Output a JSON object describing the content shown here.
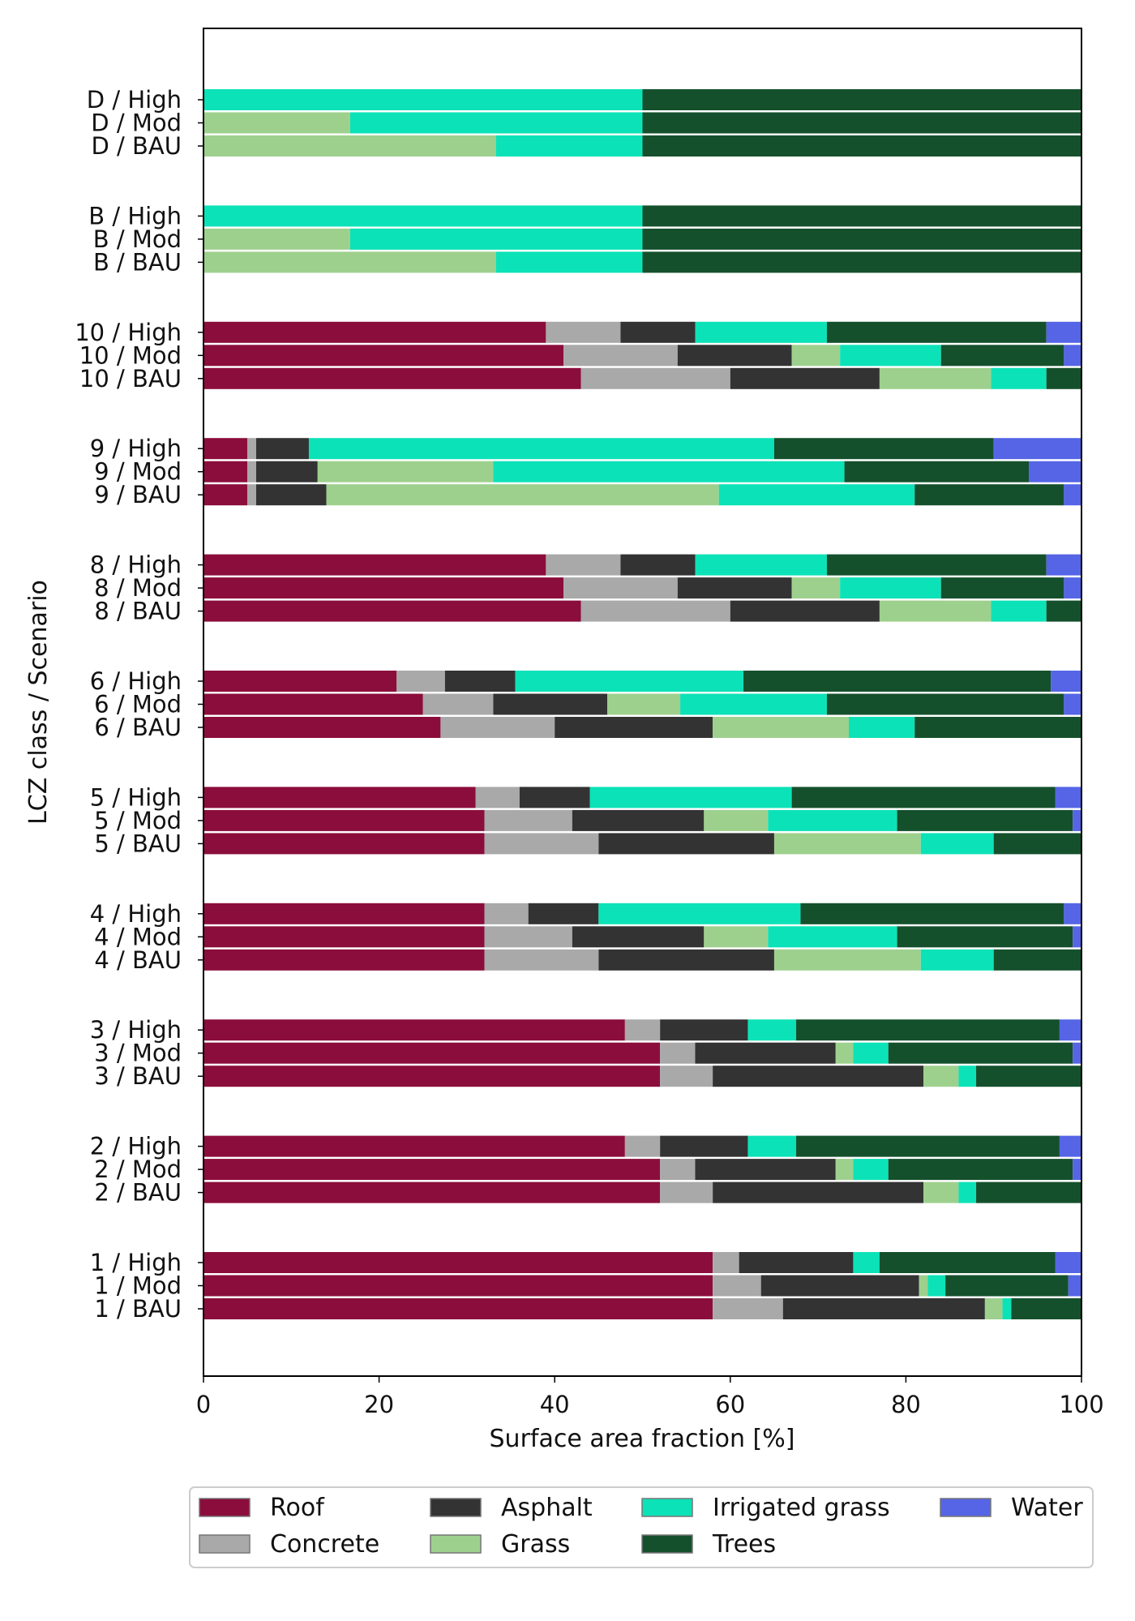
{
  "chart_data": {
    "type": "bar",
    "orientation": "horizontal",
    "stacked": true,
    "xlabel": "Surface area fraction [%]",
    "ylabel": "LCZ class / Scenario",
    "xlim": [
      0,
      100
    ],
    "x_ticks": [
      "0",
      "20",
      "40",
      "60",
      "80",
      "100"
    ],
    "grid": false,
    "legend_position": "bottom",
    "series": [
      {
        "name": "Roof",
        "color": "#8B0D3B"
      },
      {
        "name": "Concrete",
        "color": "#A9A9A9"
      },
      {
        "name": "Asphalt",
        "color": "#333333"
      },
      {
        "name": "Grass",
        "color": "#9ED08D"
      },
      {
        "name": "Irrigated grass",
        "color": "#0CE2B7"
      },
      {
        "name": "Trees",
        "color": "#15502C"
      },
      {
        "name": "Water",
        "color": "#5565E6"
      }
    ],
    "groups": [
      {
        "bars": [
          {
            "label": "D / High",
            "values": [
              0,
              0,
              0,
              0,
              50,
              50,
              0
            ]
          },
          {
            "label": "D / Mod",
            "values": [
              0,
              0,
              0,
              16.7,
              33.3,
              50,
              0
            ]
          },
          {
            "label": "D / BAU",
            "values": [
              0,
              0,
              0,
              33.3,
              16.7,
              50,
              0
            ]
          }
        ]
      },
      {
        "bars": [
          {
            "label": "B / High",
            "values": [
              0,
              0,
              0,
              0,
              50,
              50,
              0
            ]
          },
          {
            "label": "B / Mod",
            "values": [
              0,
              0,
              0,
              16.7,
              33.3,
              50,
              0
            ]
          },
          {
            "label": "B / BAU",
            "values": [
              0,
              0,
              0,
              33.3,
              16.7,
              50,
              0
            ]
          }
        ]
      },
      {
        "bars": [
          {
            "label": "10 / High",
            "values": [
              39,
              8.5,
              8.5,
              0,
              15,
              25,
              4
            ]
          },
          {
            "label": "10 / Mod",
            "values": [
              41,
              13,
              13,
              5.5,
              11.5,
              14,
              2
            ]
          },
          {
            "label": "10 / BAU",
            "values": [
              43,
              17,
              17,
              12.7,
              6.3,
              4,
              0
            ]
          }
        ]
      },
      {
        "bars": [
          {
            "label": "9 / High",
            "values": [
              5,
              1,
              6,
              0,
              53,
              25,
              10
            ]
          },
          {
            "label": "9 / Mod",
            "values": [
              5,
              1,
              7,
              20,
              40,
              21,
              6
            ]
          },
          {
            "label": "9 / BAU",
            "values": [
              5,
              1,
              8,
              44.7,
              22.3,
              17,
              2
            ]
          }
        ]
      },
      {
        "bars": [
          {
            "label": "8 / High",
            "values": [
              39,
              8.5,
              8.5,
              0,
              15,
              25,
              4
            ]
          },
          {
            "label": "8 / Mod",
            "values": [
              41,
              13,
              13,
              5.5,
              11.5,
              14,
              2
            ]
          },
          {
            "label": "8 / BAU",
            "values": [
              43,
              17,
              17,
              12.7,
              6.3,
              4,
              0
            ]
          }
        ]
      },
      {
        "bars": [
          {
            "label": "6 / High",
            "values": [
              22,
              5.5,
              8,
              0,
              26,
              35,
              3.5
            ]
          },
          {
            "label": "6 / Mod",
            "values": [
              25,
              8,
              13,
              8.3,
              16.7,
              27,
              2
            ]
          },
          {
            "label": "6 / BAU",
            "values": [
              27,
              13,
              18,
              15.5,
              7.5,
              19,
              0
            ]
          }
        ]
      },
      {
        "bars": [
          {
            "label": "5 / High",
            "values": [
              31,
              5,
              8,
              0,
              23,
              30,
              3
            ]
          },
          {
            "label": "5 / Mod",
            "values": [
              32,
              10,
              15,
              7.3,
              14.7,
              20,
              1
            ]
          },
          {
            "label": "5 / BAU",
            "values": [
              32,
              13,
              20,
              16.7,
              8.3,
              10,
              0
            ]
          }
        ]
      },
      {
        "bars": [
          {
            "label": "4 / High",
            "values": [
              32,
              5,
              8,
              0,
              23,
              30,
              2
            ]
          },
          {
            "label": "4 / Mod",
            "values": [
              32,
              10,
              15,
              7.3,
              14.7,
              20,
              1
            ]
          },
          {
            "label": "4 / BAU",
            "values": [
              32,
              13,
              20,
              16.7,
              8.3,
              10,
              0
            ]
          }
        ]
      },
      {
        "bars": [
          {
            "label": "3 / High",
            "values": [
              48,
              4,
              10,
              0,
              5.5,
              30,
              2.5
            ]
          },
          {
            "label": "3 / Mod",
            "values": [
              52,
              4,
              16,
              2,
              4,
              21,
              1
            ]
          },
          {
            "label": "3 / BAU",
            "values": [
              52,
              6,
              24,
              4,
              2,
              12,
              0
            ]
          }
        ]
      },
      {
        "bars": [
          {
            "label": "2 / High",
            "values": [
              48,
              4,
              10,
              0,
              5.5,
              30,
              2.5
            ]
          },
          {
            "label": "2 / Mod",
            "values": [
              52,
              4,
              16,
              2,
              4,
              21,
              1
            ]
          },
          {
            "label": "2 / BAU",
            "values": [
              52,
              6,
              24,
              4,
              2,
              12,
              0
            ]
          }
        ]
      },
      {
        "bars": [
          {
            "label": "1 / High",
            "values": [
              58,
              3,
              13,
              0,
              3,
              20,
              3
            ]
          },
          {
            "label": "1 / Mod",
            "values": [
              58,
              5.5,
              18,
              1,
              2,
              14,
              1.5
            ]
          },
          {
            "label": "1 / BAU",
            "values": [
              58,
              8,
              23,
              2,
              1,
              8,
              0
            ]
          }
        ]
      }
    ]
  }
}
